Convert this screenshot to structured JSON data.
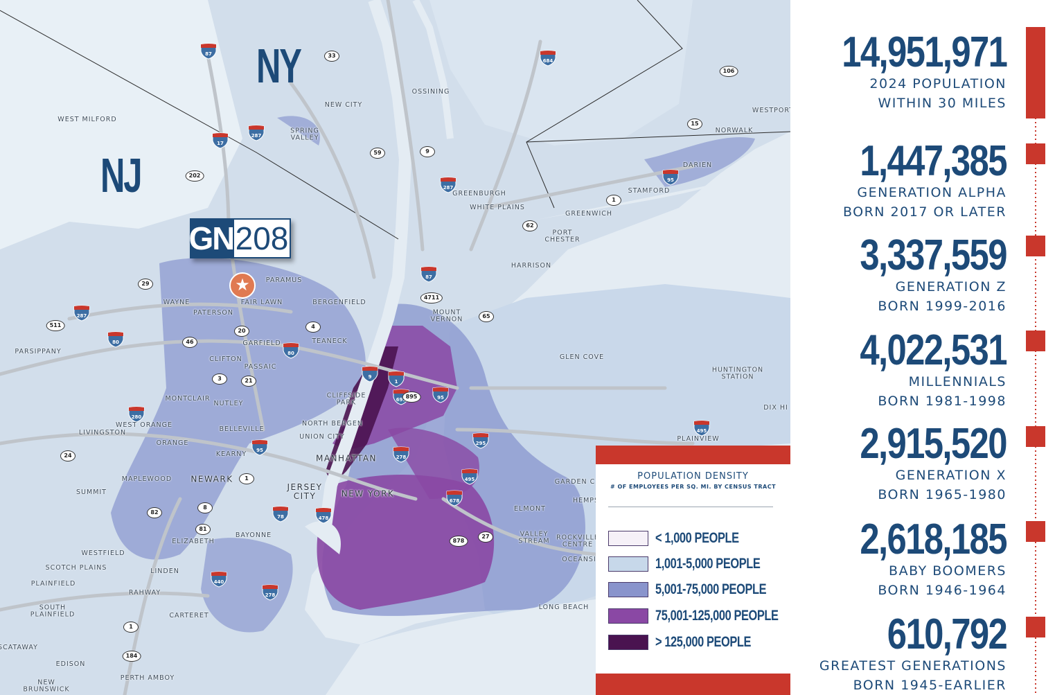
{
  "map": {
    "states": [
      {
        "id": "ny",
        "text": "NY"
      },
      {
        "id": "nj",
        "text": "NJ"
      }
    ],
    "logo": {
      "left": "GN",
      "right": "208"
    },
    "places": [
      {
        "id": "west-milford",
        "text": "WEST MILFORD"
      },
      {
        "id": "ossining",
        "text": "OSSINING"
      },
      {
        "id": "new-city",
        "text": "NEW CITY"
      },
      {
        "id": "spring-valley",
        "text": "SPRING\nVALLEY"
      },
      {
        "id": "greenburgh",
        "text": "GREENBURGH"
      },
      {
        "id": "white-plains",
        "text": "WHITE PLAINS"
      },
      {
        "id": "greenwich",
        "text": "GREENWICH"
      },
      {
        "id": "port-chester",
        "text": "PORT\nCHESTER"
      },
      {
        "id": "harrison",
        "text": "HARRISON"
      },
      {
        "id": "stamford",
        "text": "STAMFORD"
      },
      {
        "id": "darien",
        "text": "DARIEN"
      },
      {
        "id": "norwalk",
        "text": "NORWALK"
      },
      {
        "id": "westport",
        "text": "WESTPORT"
      },
      {
        "id": "paramus",
        "text": "PARAMUS"
      },
      {
        "id": "fair-lawn",
        "text": "FAIR LAWN"
      },
      {
        "id": "wayne",
        "text": "WAYNE"
      },
      {
        "id": "paterson",
        "text": "PATERSON"
      },
      {
        "id": "bergenfield",
        "text": "BERGENFIELD"
      },
      {
        "id": "mount-vernon",
        "text": "MOUNT\nVERNON"
      },
      {
        "id": "garfield",
        "text": "GARFIELD"
      },
      {
        "id": "teaneck",
        "text": "TEANECK"
      },
      {
        "id": "parsippany",
        "text": "PARSIPPANY"
      },
      {
        "id": "clifton",
        "text": "CLIFTON"
      },
      {
        "id": "passaic",
        "text": "PASSAIC"
      },
      {
        "id": "glen-cove",
        "text": "GLEN COVE"
      },
      {
        "id": "huntington-station",
        "text": "HUNTINGTON\nSTATION"
      },
      {
        "id": "montclair",
        "text": "MONTCLAIR"
      },
      {
        "id": "nutley",
        "text": "NUTLEY"
      },
      {
        "id": "cliffside-park",
        "text": "CLIFFSIDE\nPARK"
      },
      {
        "id": "dix-hills",
        "text": "DIX HI"
      },
      {
        "id": "west-orange",
        "text": "WEST ORANGE"
      },
      {
        "id": "livingston",
        "text": "LIVINGSTON"
      },
      {
        "id": "north-bergen",
        "text": "NORTH BERGEN"
      },
      {
        "id": "orange",
        "text": "ORANGE"
      },
      {
        "id": "belleville",
        "text": "BELLEVILLE"
      },
      {
        "id": "union-city",
        "text": "UNION CITY"
      },
      {
        "id": "plainview",
        "text": "PLAINVIEW"
      },
      {
        "id": "kearny",
        "text": "KEARNY"
      },
      {
        "id": "manhattan",
        "text": "MANHATTAN"
      },
      {
        "id": "maplewood",
        "text": "MAPLEWOOD"
      },
      {
        "id": "newark",
        "text": "NEWARK"
      },
      {
        "id": "garden-city",
        "text": "GARDEN C"
      },
      {
        "id": "jersey-city",
        "text": "JERSEY\nCITY"
      },
      {
        "id": "new-york",
        "text": "NEW YORK"
      },
      {
        "id": "summit",
        "text": "SUMMIT"
      },
      {
        "id": "hempstead",
        "text": "HEMPS"
      },
      {
        "id": "elmont",
        "text": "ELMONT"
      },
      {
        "id": "bayonne",
        "text": "BAYONNE"
      },
      {
        "id": "elizabeth",
        "text": "ELIZABETH"
      },
      {
        "id": "valley-stream",
        "text": "VALLEY\nSTREAM"
      },
      {
        "id": "rockville-centre",
        "text": "ROCKVILLE\nCENTRE"
      },
      {
        "id": "westfield",
        "text": "WESTFIELD"
      },
      {
        "id": "oceanside",
        "text": "OCEANSI"
      },
      {
        "id": "scotch-plains",
        "text": "SCOTCH PLAINS"
      },
      {
        "id": "linden",
        "text": "LINDEN"
      },
      {
        "id": "plainfield",
        "text": "PLAINFIELD"
      },
      {
        "id": "rahway",
        "text": "RAHWAY"
      },
      {
        "id": "south-plainfield",
        "text": "SOUTH\nPLAINFIELD"
      },
      {
        "id": "carteret",
        "text": "CARTERET"
      },
      {
        "id": "long-beach",
        "text": "LONG BEACH"
      },
      {
        "id": "scataway",
        "text": "SCATAWAY"
      },
      {
        "id": "edison",
        "text": "EDISON"
      },
      {
        "id": "perth-amboy",
        "text": "PERTH AMBOY"
      },
      {
        "id": "new-brunswick",
        "text": "NEW\nBRUNSWICK"
      }
    ],
    "interstates": [
      "87",
      "684",
      "17",
      "287",
      "95",
      "287",
      "87",
      "287",
      "80",
      "80",
      "280",
      "95",
      "9",
      "1",
      "95",
      "695",
      "295",
      "278",
      "495",
      "678",
      "78",
      "478",
      "440",
      "278",
      "495"
    ],
    "routes": [
      "33",
      "106",
      "15",
      "59",
      "9",
      "202",
      "1",
      "62",
      "29",
      "4711",
      "65",
      "4",
      "511",
      "20",
      "46",
      "3",
      "21",
      "895",
      "24",
      "1",
      "82",
      "8",
      "81",
      "878",
      "27",
      "1",
      "184"
    ]
  },
  "legend": {
    "title": "POPULATION DENSITY",
    "subtitle": "# OF EMPLOYEES PER SQ. MI. BY CENSUS TRACT",
    "items": [
      {
        "label": "< 1,000 PEOPLE",
        "color": "#f6f1f8"
      },
      {
        "label": "1,001-5,000 PEOPLE",
        "color": "#c7d8ea"
      },
      {
        "label": "5,001-75,000 PEOPLE",
        "color": "#8994cc"
      },
      {
        "label": "75,001-125,000 PEOPLE",
        "color": "#8a48a4"
      },
      {
        "label": "> 125,000 PEOPLE",
        "color": "#4a1350"
      }
    ]
  },
  "stats": [
    {
      "value": "14,951,971",
      "line1": "2024 POPULATION",
      "line2": "WITHIN 30 MILES"
    },
    {
      "value": "1,447,385",
      "line1": "GENERATION ALPHA",
      "line2": "BORN 2017 OR LATER"
    },
    {
      "value": "3,337,559",
      "line1": "GENERATION Z",
      "line2": "BORN 1999-2016"
    },
    {
      "value": "4,022,531",
      "line1": "MILLENNIALS",
      "line2": "BORN 1981-1998"
    },
    {
      "value": "2,915,520",
      "line1": "GENERATION X",
      "line2": "BORN 1965-1980"
    },
    {
      "value": "2,618,185",
      "line1": "BABY BOOMERS",
      "line2": "BORN 1946-1964"
    },
    {
      "value": "610,792",
      "line1": "GREATEST GENERATIONS",
      "line2": "BORN 1945-EARLIER"
    }
  ],
  "colors": {
    "navy": "#1d4a78",
    "red": "#c9372c",
    "water": "#e4ecf3",
    "road": "#bfc4ca"
  }
}
